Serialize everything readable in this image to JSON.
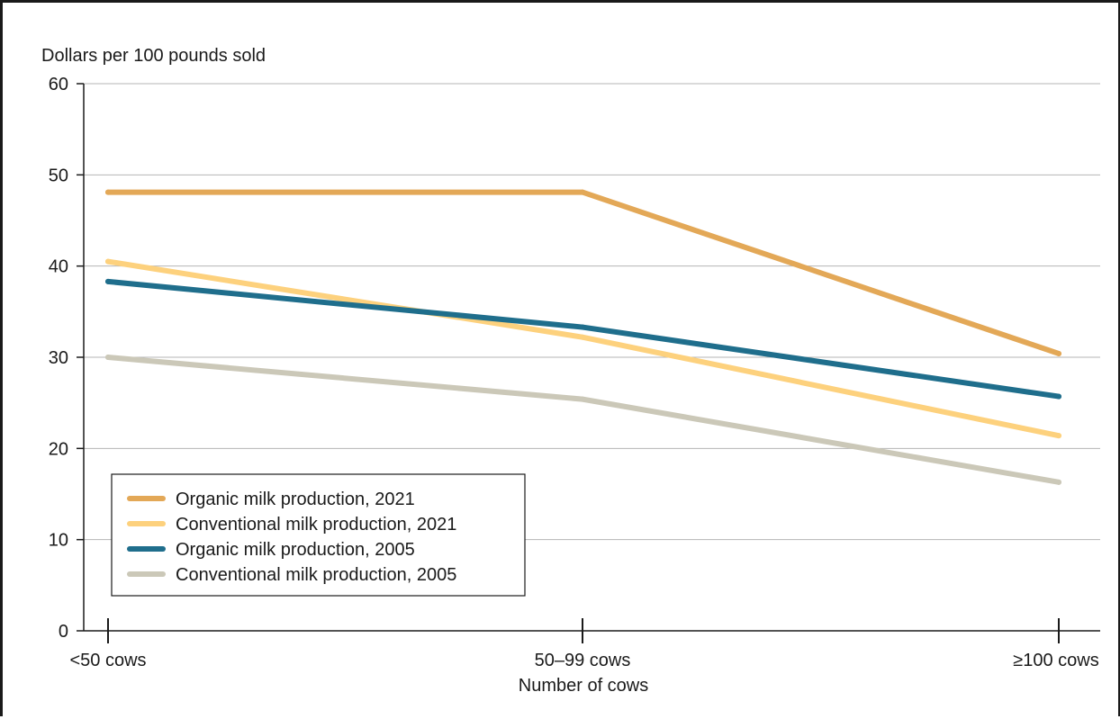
{
  "chart_data": {
    "type": "line",
    "title": "",
    "ylabel": "Dollars per 100 pounds sold",
    "xlabel": "Number of cows",
    "categories": [
      "<50 cows",
      "50–99 cows",
      "≥100 cows"
    ],
    "ylim": [
      0,
      60
    ],
    "yticks": [
      0,
      10,
      20,
      30,
      40,
      50,
      60
    ],
    "grid": true,
    "legend_position": "bottom-left",
    "series": [
      {
        "name": "Organic milk production, 2021",
        "values": [
          48.1,
          48.1,
          30.4
        ],
        "color": "#e3a857"
      },
      {
        "name": "Conventional milk production, 2021",
        "values": [
          40.5,
          32.2,
          21.4
        ],
        "color": "#fdd17d"
      },
      {
        "name": "Organic milk production, 2005",
        "values": [
          38.3,
          33.3,
          25.7
        ],
        "color": "#1f6e8c"
      },
      {
        "name": "Conventional milk production, 2005",
        "values": [
          30.0,
          25.4,
          16.3
        ],
        "color": "#cbc8b8"
      }
    ]
  }
}
